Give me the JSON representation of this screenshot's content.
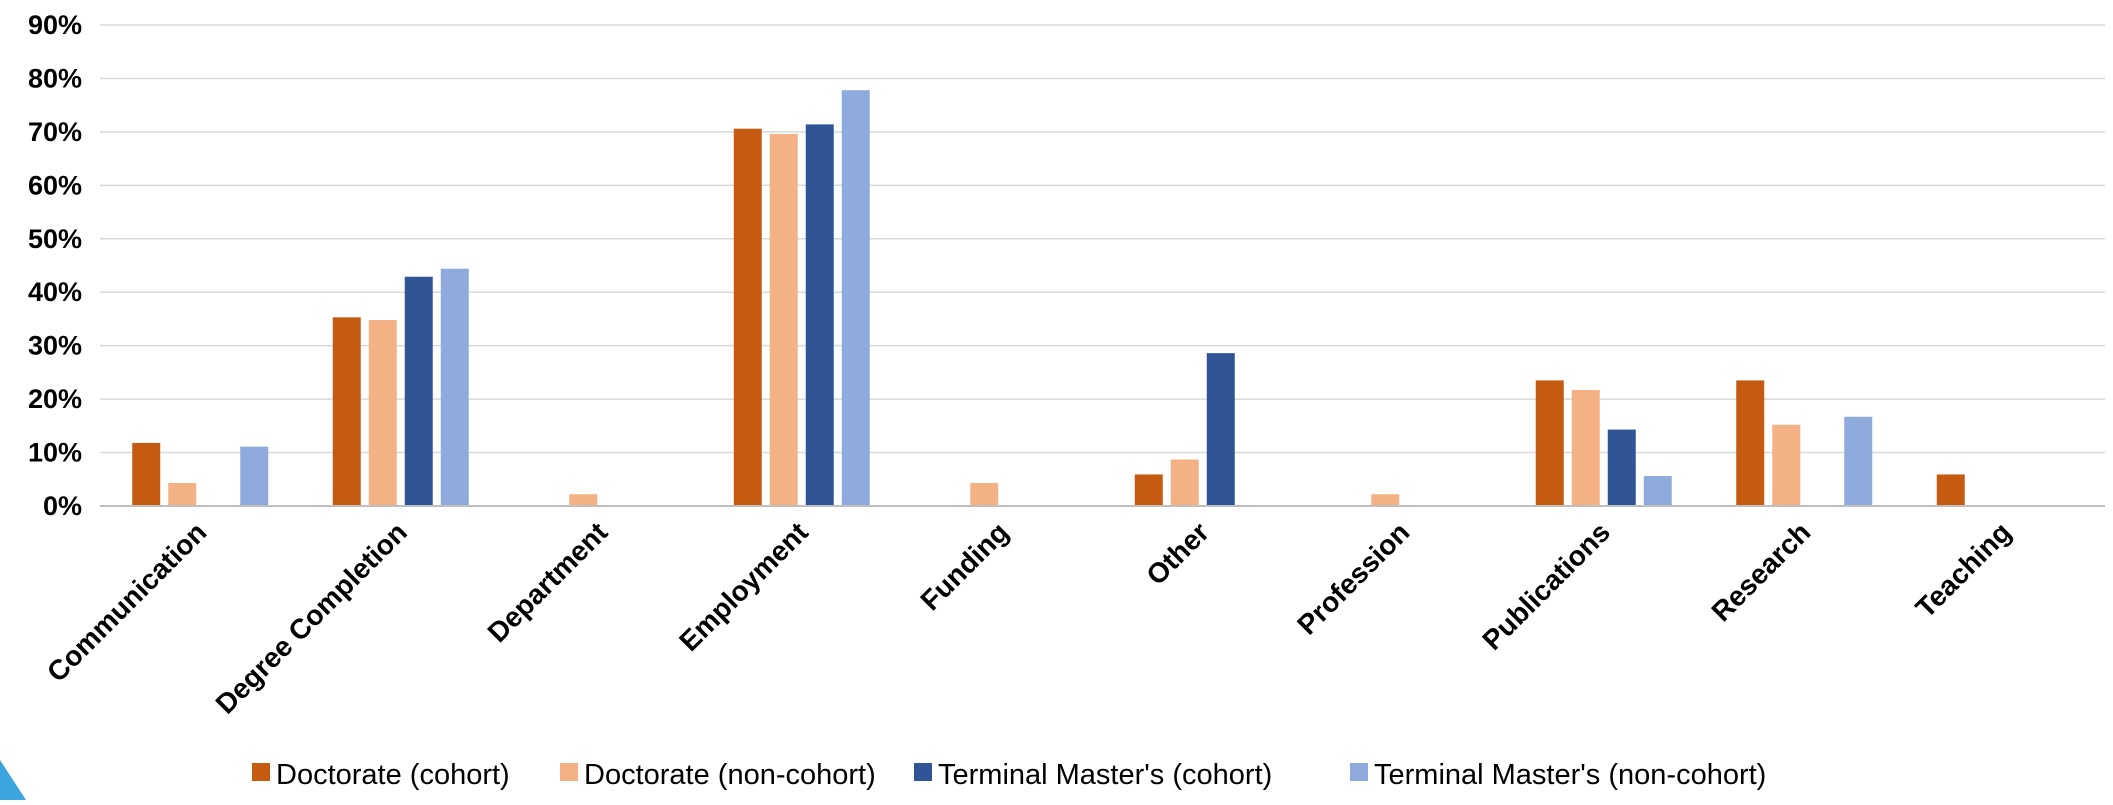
{
  "chart_data": {
    "type": "bar",
    "title": "",
    "xlabel": "",
    "ylabel": "",
    "ylim": [
      0,
      0.9
    ],
    "y_ticks": [
      0,
      0.1,
      0.2,
      0.3,
      0.4,
      0.5,
      0.6,
      0.7,
      0.8,
      0.9
    ],
    "y_tick_labels": [
      "0%",
      "10%",
      "20%",
      "30%",
      "40%",
      "50%",
      "60%",
      "70%",
      "80%",
      "90%"
    ],
    "grid": true,
    "legend_position": "bottom",
    "categories": [
      "Communication",
      "Degree Completion",
      "Department",
      "Employment",
      "Funding",
      "Other",
      "Profession",
      "Publications",
      "Research",
      "Teaching"
    ],
    "series": [
      {
        "name": "Doctorate (cohort)",
        "color": "#c55a11",
        "values": [
          0.118,
          0.353,
          0,
          0.706,
          0,
          0.059,
          0,
          0.235,
          0.235,
          0.059
        ]
      },
      {
        "name": "Doctorate (non-cohort)",
        "color": "#f4b183",
        "values": [
          0.043,
          0.348,
          0.022,
          0.696,
          0.043,
          0.087,
          0.022,
          0.217,
          0.152,
          0
        ]
      },
      {
        "name": "Terminal Master's (cohort)",
        "color": "#2f5597",
        "values": [
          0,
          0.429,
          0,
          0.714,
          0,
          0.286,
          0,
          0.143,
          0,
          0
        ]
      },
      {
        "name": "Terminal Master's (non-cohort)",
        "color": "#8faadc",
        "values": [
          0.111,
          0.444,
          0,
          0.778,
          0,
          0,
          0,
          0.056,
          0.167,
          0
        ]
      }
    ]
  }
}
